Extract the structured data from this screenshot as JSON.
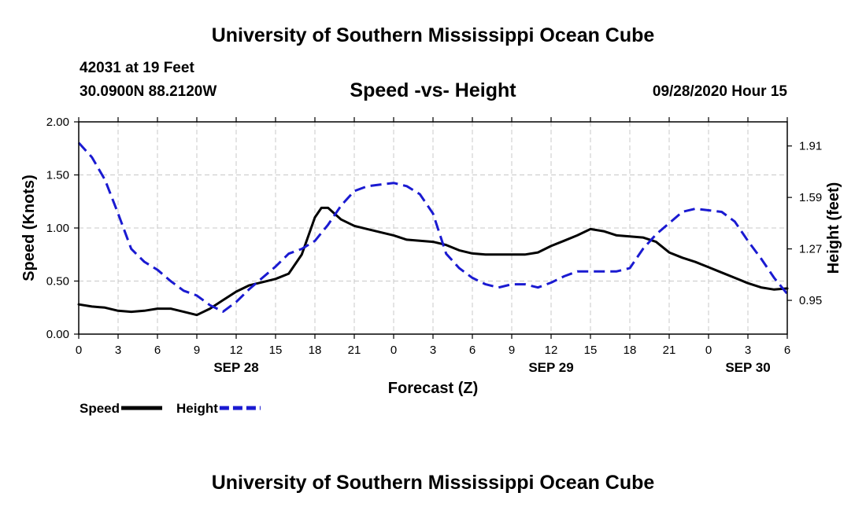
{
  "header": {
    "top_title": "University of Southern Mississippi Ocean Cube",
    "station": "42031 at 19 Feet",
    "coords": "30.0900N 88.2120W",
    "chart_title": "Speed -vs- Height",
    "timestamp": "09/28/2020 Hour 15"
  },
  "footer": {
    "bottom_title": "University of Southern Mississippi Ocean Cube"
  },
  "chart_data": {
    "type": "line",
    "title": "Speed -vs- Height",
    "xlabel": "Forecast (Z)",
    "ylabel": "Speed (Knots)",
    "y2label": "Height (feet)",
    "xlim": [
      0,
      54
    ],
    "ylim": [
      0,
      2.0
    ],
    "y2lim": [
      0.74,
      2.06
    ],
    "x_ticks": [
      0,
      3,
      6,
      9,
      12,
      15,
      18,
      21,
      24,
      27,
      30,
      33,
      36,
      39,
      42,
      45,
      48,
      51,
      54
    ],
    "x_tick_labels": [
      "0",
      "3",
      "6",
      "9",
      "12",
      "15",
      "18",
      "21",
      "0",
      "3",
      "6",
      "9",
      "12",
      "15",
      "18",
      "21",
      "0",
      "3",
      "6"
    ],
    "date_labels": [
      {
        "x": 12,
        "label": "SEP 28"
      },
      {
        "x": 36,
        "label": "SEP 29"
      },
      {
        "x": 51,
        "label": "SEP 30"
      }
    ],
    "y_ticks": [
      0,
      0.5,
      1.0,
      1.5,
      2.0
    ],
    "y_tick_labels": [
      "0.00",
      "0.50",
      "1.00",
      "1.50",
      "2.00"
    ],
    "y2_ticks": [
      0.95,
      1.27,
      1.59,
      1.91
    ],
    "y2_tick_labels": [
      "0.95",
      "1.27",
      "1.59",
      "1.91"
    ],
    "grid": true,
    "series": [
      {
        "name": "Speed",
        "axis": "left",
        "color": "#000000",
        "dash": "solid",
        "x": [
          0,
          1,
          2,
          3,
          4,
          5,
          6,
          7,
          8,
          9,
          10,
          11,
          12,
          13,
          14,
          15,
          16,
          17,
          18,
          18.5,
          19,
          20,
          21,
          22,
          23,
          24,
          25,
          26,
          27,
          28,
          29,
          30,
          31,
          32,
          33,
          34,
          35,
          36,
          37,
          38,
          39,
          40,
          41,
          42,
          43,
          44,
          45,
          46,
          47,
          48,
          49,
          50,
          51,
          52,
          53,
          54
        ],
        "values": [
          0.28,
          0.26,
          0.25,
          0.22,
          0.21,
          0.22,
          0.24,
          0.24,
          0.21,
          0.18,
          0.24,
          0.32,
          0.4,
          0.46,
          0.49,
          0.52,
          0.57,
          0.75,
          1.1,
          1.19,
          1.19,
          1.08,
          1.02,
          0.99,
          0.96,
          0.93,
          0.89,
          0.88,
          0.87,
          0.84,
          0.79,
          0.76,
          0.75,
          0.75,
          0.75,
          0.75,
          0.77,
          0.83,
          0.88,
          0.93,
          0.99,
          0.97,
          0.93,
          0.92,
          0.91,
          0.87,
          0.77,
          0.72,
          0.68,
          0.63,
          0.58,
          0.53,
          0.48,
          0.44,
          0.42,
          0.43
        ]
      },
      {
        "name": "Height",
        "axis": "right",
        "color": "#1a1ad1",
        "dash": "dashed",
        "x": [
          0,
          1,
          2,
          3,
          4,
          5,
          6,
          7,
          8,
          9,
          10,
          11,
          12,
          13,
          14,
          15,
          16,
          17,
          18,
          19,
          20,
          21,
          22,
          23,
          24,
          25,
          26,
          27,
          28,
          29,
          30,
          31,
          32,
          33,
          34,
          35,
          36,
          37,
          38,
          39,
          40,
          41,
          42,
          43,
          44,
          45,
          46,
          47,
          48,
          49,
          50,
          51,
          52,
          53,
          54
        ],
        "values": [
          1.93,
          1.84,
          1.7,
          1.49,
          1.27,
          1.19,
          1.14,
          1.07,
          1.01,
          0.98,
          0.92,
          0.88,
          0.94,
          1.02,
          1.09,
          1.16,
          1.24,
          1.27,
          1.32,
          1.42,
          1.54,
          1.63,
          1.66,
          1.67,
          1.68,
          1.66,
          1.61,
          1.49,
          1.24,
          1.15,
          1.09,
          1.05,
          1.03,
          1.05,
          1.05,
          1.03,
          1.06,
          1.1,
          1.13,
          1.13,
          1.13,
          1.13,
          1.15,
          1.27,
          1.36,
          1.43,
          1.5,
          1.52,
          1.51,
          1.5,
          1.44,
          1.32,
          1.21,
          1.09,
          0.99
        ]
      }
    ],
    "legend": [
      {
        "label": "Speed",
        "color": "#000000",
        "dash": "solid"
      },
      {
        "label": "Height",
        "color": "#1a1ad1",
        "dash": "dashed"
      }
    ],
    "legend_position": "bottom-left"
  }
}
